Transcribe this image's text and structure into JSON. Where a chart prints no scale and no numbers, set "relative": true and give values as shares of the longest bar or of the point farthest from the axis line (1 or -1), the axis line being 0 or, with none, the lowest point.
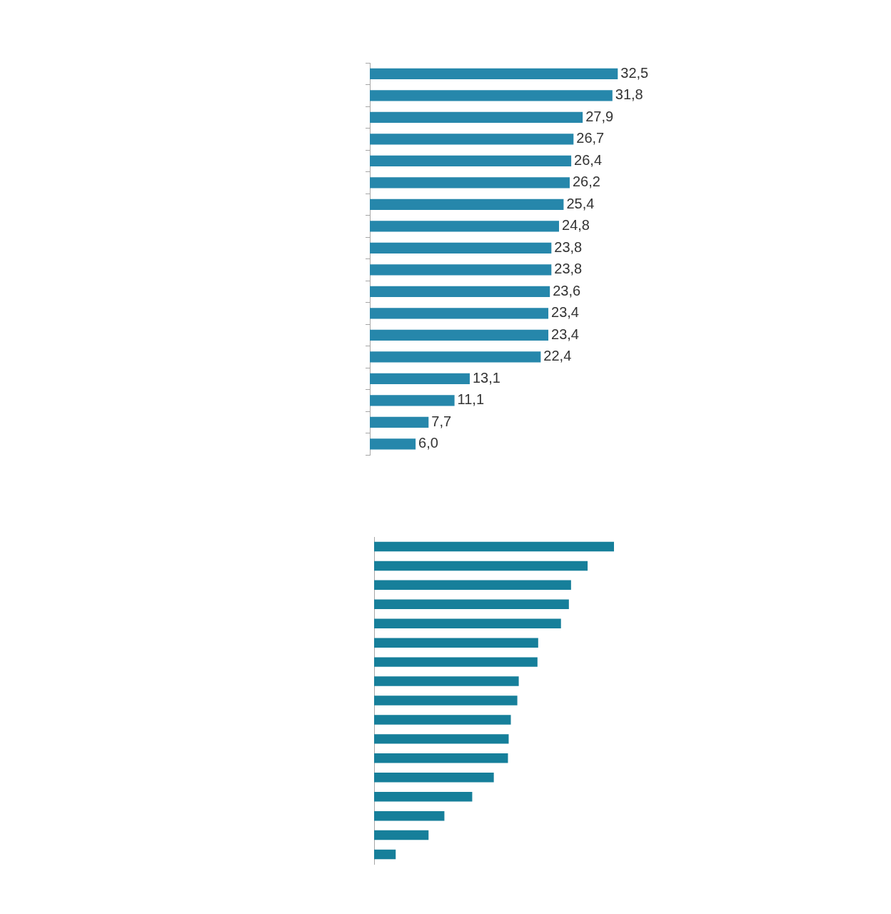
{
  "chart_data": [
    {
      "type": "bar",
      "orientation": "horizontal",
      "categories": [
        null,
        null,
        null,
        null,
        null,
        null,
        null,
        null,
        null,
        null,
        null,
        null,
        null,
        null,
        null,
        null,
        null,
        null
      ],
      "values": [
        32.5,
        31.8,
        27.9,
        26.7,
        26.4,
        26.2,
        25.4,
        24.8,
        23.8,
        23.8,
        23.6,
        23.4,
        23.4,
        22.4,
        13.1,
        11.1,
        7.7,
        6.0
      ],
      "value_labels": [
        "32,5",
        "31,8",
        "27,9",
        "26,7",
        "26,4",
        "26,2",
        "25,4",
        "24,8",
        "23,8",
        "23,8",
        "23,6",
        "23,4",
        "23,4",
        "22,4",
        "13,1",
        "11,1",
        "7,7",
        "6,0"
      ],
      "color": "#2687ab",
      "tick_labels": false
    },
    {
      "type": "bar",
      "orientation": "horizontal",
      "relative": true,
      "categories": [
        null,
        null,
        null,
        null,
        null,
        null,
        null,
        null,
        null,
        null,
        null,
        null,
        null,
        null,
        null,
        null,
        null
      ],
      "values": [
        1,
        0.89,
        0.821,
        0.812,
        0.779,
        0.684,
        0.681,
        0.603,
        0.597,
        0.57,
        0.561,
        0.558,
        0.499,
        0.409,
        0.293,
        0.227,
        0.09
      ],
      "color": "#167f9a",
      "tick_labels": false
    }
  ]
}
